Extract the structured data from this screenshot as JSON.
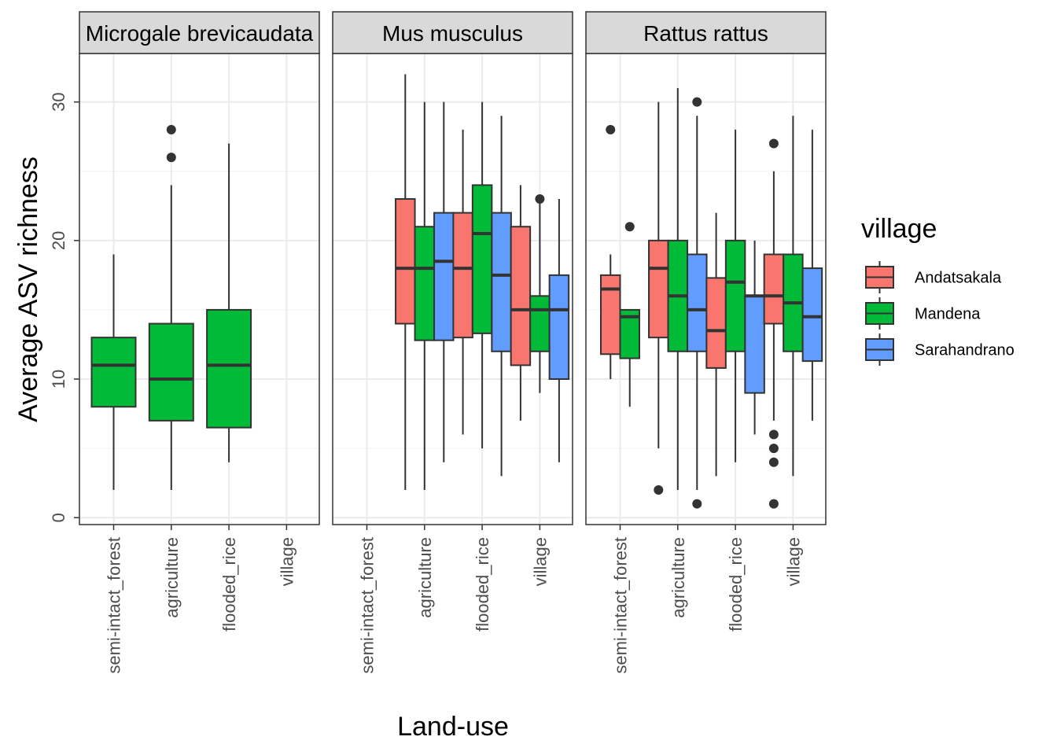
{
  "chart_data": {
    "type": "boxplot",
    "ylabel": "Average ASV richness",
    "xlabel": "Land-use",
    "ylim": [
      -0.5,
      33.5
    ],
    "yticks": [
      0,
      10,
      20,
      30
    ],
    "categories": [
      "semi-intact_forest",
      "agriculture",
      "flooded_rice",
      "village"
    ],
    "grid": true,
    "legend": {
      "title": "village",
      "position": "right",
      "entries": [
        {
          "name": "Andatsakala",
          "color": "#F8766D"
        },
        {
          "name": "Mandena",
          "color": "#00BA38"
        },
        {
          "name": "Sarahandrano",
          "color": "#619CFF"
        }
      ]
    },
    "panels": [
      {
        "title": "Microgale brevicaudata",
        "boxes": [
          {
            "category": "semi-intact_forest",
            "group": "Mandena",
            "min": 2,
            "q1": 8,
            "median": 11,
            "q3": 13,
            "max": 19,
            "outliers": []
          },
          {
            "category": "agriculture",
            "group": "Mandena",
            "min": 2,
            "q1": 7,
            "median": 10,
            "q3": 14,
            "max": 24,
            "outliers": [
              26,
              28
            ]
          },
          {
            "category": "flooded_rice",
            "group": "Mandena",
            "min": 4,
            "q1": 6.5,
            "median": 11,
            "q3": 15,
            "max": 27,
            "outliers": []
          }
        ]
      },
      {
        "title": "Mus musculus",
        "boxes": [
          {
            "category": "agriculture",
            "group": "Andatsakala",
            "min": 2,
            "q1": 14,
            "median": 18,
            "q3": 23,
            "max": 32,
            "outliers": []
          },
          {
            "category": "agriculture",
            "group": "Mandena",
            "min": 2,
            "q1": 12.8,
            "median": 18,
            "q3": 21,
            "max": 30,
            "outliers": []
          },
          {
            "category": "agriculture",
            "group": "Sarahandrano",
            "min": 4,
            "q1": 12.8,
            "median": 18.5,
            "q3": 22,
            "max": 30,
            "outliers": []
          },
          {
            "category": "flooded_rice",
            "group": "Andatsakala",
            "min": 6,
            "q1": 13,
            "median": 18,
            "q3": 22,
            "max": 28,
            "outliers": []
          },
          {
            "category": "flooded_rice",
            "group": "Mandena",
            "min": 5,
            "q1": 13.3,
            "median": 20.5,
            "q3": 24,
            "max": 30,
            "outliers": []
          },
          {
            "category": "flooded_rice",
            "group": "Sarahandrano",
            "min": 3,
            "q1": 12,
            "median": 17.5,
            "q3": 22,
            "max": 29,
            "outliers": []
          },
          {
            "category": "village",
            "group": "Andatsakala",
            "min": 7,
            "q1": 11,
            "median": 15,
            "q3": 21,
            "max": 24,
            "outliers": []
          },
          {
            "category": "village",
            "group": "Mandena",
            "min": 9,
            "q1": 12,
            "median": 15,
            "q3": 16,
            "max": 23,
            "outliers": [
              23
            ]
          },
          {
            "category": "village",
            "group": "Sarahandrano",
            "min": 4,
            "q1": 10,
            "median": 15,
            "q3": 17.5,
            "max": 23,
            "outliers": []
          }
        ]
      },
      {
        "title": "Rattus rattus",
        "boxes": [
          {
            "category": "semi-intact_forest",
            "group": "Andatsakala",
            "min": 10,
            "q1": 11.8,
            "median": 16.5,
            "q3": 17.5,
            "max": 19,
            "outliers": [
              28
            ]
          },
          {
            "category": "semi-intact_forest",
            "group": "Mandena",
            "min": 8,
            "q1": 11.5,
            "median": 14.5,
            "q3": 15,
            "max": 15,
            "outliers": [
              21
            ]
          },
          {
            "category": "agriculture",
            "group": "Andatsakala",
            "min": 5,
            "q1": 13,
            "median": 18,
            "q3": 20,
            "max": 30,
            "outliers": [
              2
            ]
          },
          {
            "category": "agriculture",
            "group": "Mandena",
            "min": 2,
            "q1": 12,
            "median": 16,
            "q3": 20,
            "max": 31,
            "outliers": []
          },
          {
            "category": "agriculture",
            "group": "Sarahandrano",
            "min": 2,
            "q1": 12,
            "median": 15,
            "q3": 19,
            "max": 29,
            "outliers": [
              1,
              30
            ]
          },
          {
            "category": "flooded_rice",
            "group": "Andatsakala",
            "min": 3,
            "q1": 10.8,
            "median": 13.5,
            "q3": 17.3,
            "max": 22,
            "outliers": []
          },
          {
            "category": "flooded_rice",
            "group": "Mandena",
            "min": 4,
            "q1": 12,
            "median": 17,
            "q3": 20,
            "max": 28,
            "outliers": []
          },
          {
            "category": "flooded_rice",
            "group": "Sarahandrano",
            "min": 6,
            "q1": 9,
            "median": 16,
            "q3": 16,
            "max": 20,
            "outliers": []
          },
          {
            "category": "village",
            "group": "Andatsakala",
            "min": 7,
            "q1": 14,
            "median": 16,
            "q3": 19,
            "max": 25,
            "outliers": [
              1,
              4,
              5,
              6,
              27
            ]
          },
          {
            "category": "village",
            "group": "Mandena",
            "min": 3,
            "q1": 12,
            "median": 15.5,
            "q3": 19,
            "max": 29,
            "outliers": []
          },
          {
            "category": "village",
            "group": "Sarahandrano",
            "min": 7,
            "q1": 11.3,
            "median": 14.5,
            "q3": 18,
            "max": 28,
            "outliers": []
          }
        ]
      }
    ]
  }
}
